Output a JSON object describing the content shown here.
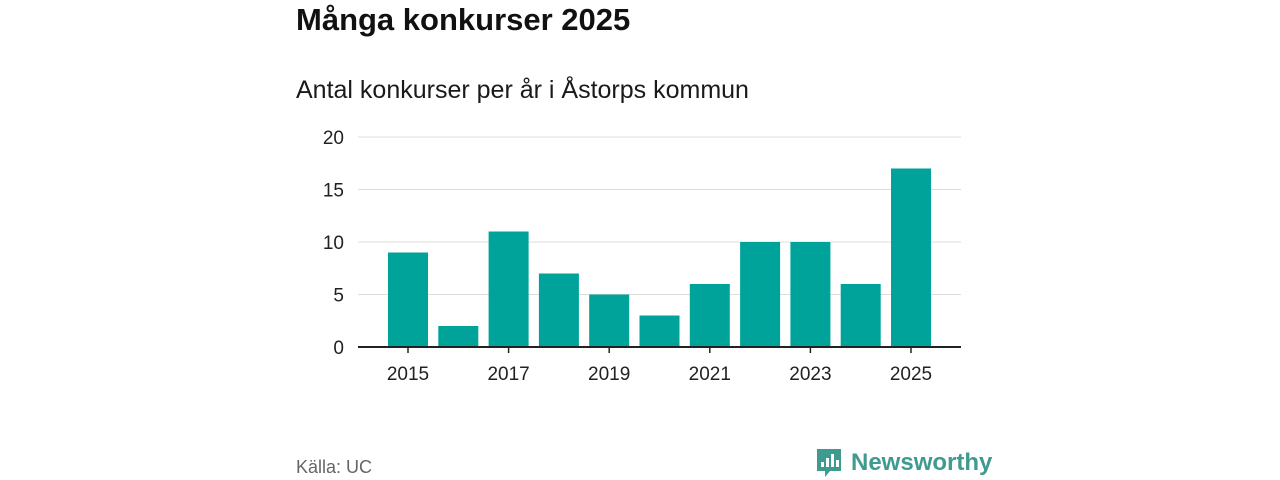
{
  "colors": {
    "bar": "#00a39a",
    "grid": "#dcdcdc",
    "axis": "#222222",
    "brand": "#3f9a8f"
  },
  "title": "Många konkurser 2025",
  "source": "Källa: UC",
  "brand": {
    "name": "Newsworthy",
    "icon": "newsworthy-logo-icon"
  },
  "chart_data": {
    "type": "bar",
    "title": "Antal konkurser per år i Åstorps kommun",
    "xlabel": "",
    "ylabel": "",
    "categories": [
      "2015",
      "2016",
      "2017",
      "2018",
      "2019",
      "2020",
      "2021",
      "2022",
      "2023",
      "2024",
      "2025"
    ],
    "values": [
      9,
      2,
      11,
      7,
      5,
      3,
      6,
      10,
      10,
      6,
      17
    ],
    "ylim": [
      0,
      20
    ],
    "yticks": [
      "0",
      "5",
      "10",
      "15",
      "20"
    ],
    "xtick_labels": [
      "2015",
      "2017",
      "2019",
      "2021",
      "2023",
      "2025"
    ],
    "grid": true,
    "legend": "none"
  }
}
